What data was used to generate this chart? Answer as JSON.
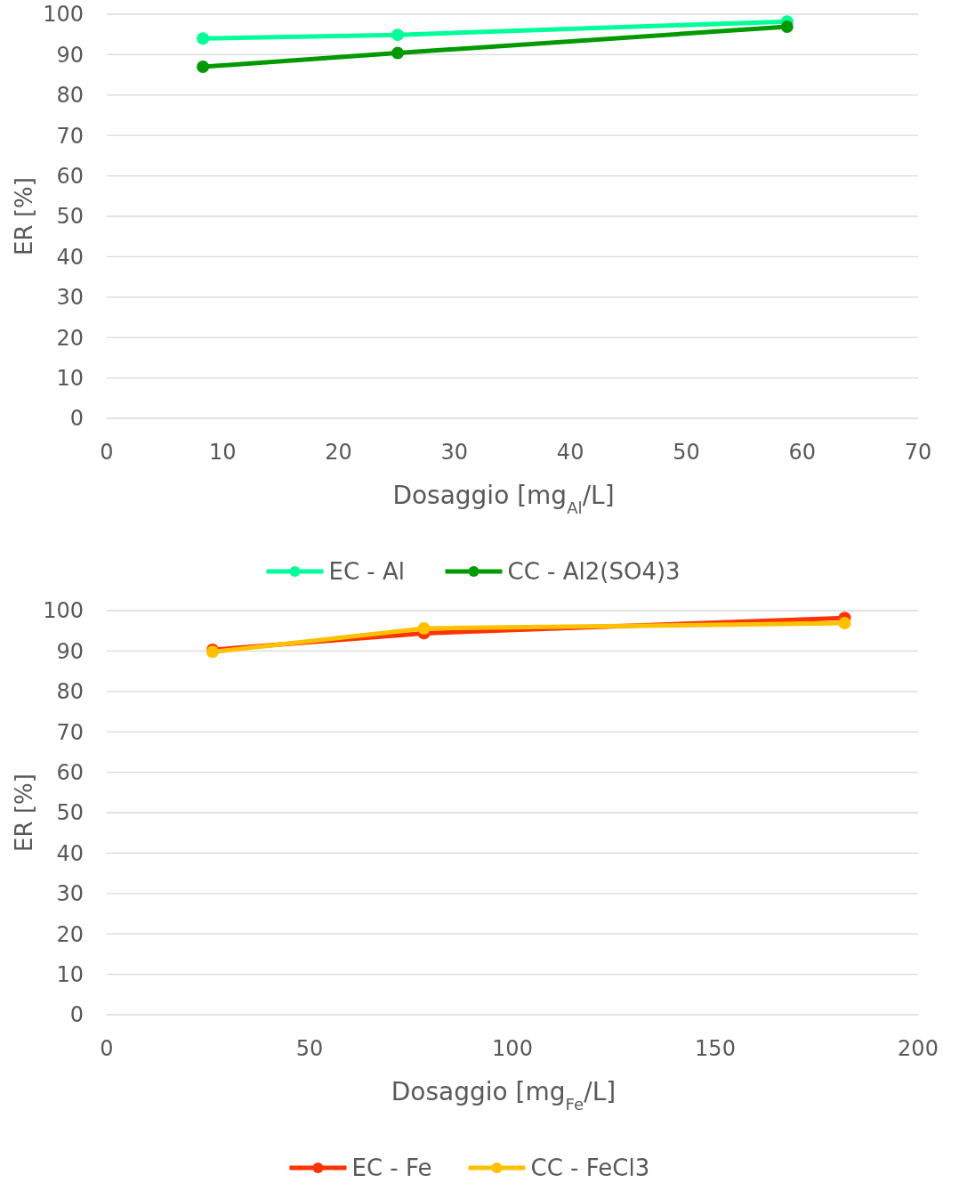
{
  "chart_data": [
    {
      "type": "line",
      "xlabel": "Dosaggio [mg$_{Al}$/L]",
      "ylabel": "ER [%]",
      "xlim": [
        0,
        70
      ],
      "xticks": [
        0,
        10,
        20,
        30,
        40,
        50,
        60,
        70
      ],
      "ylim": [
        0,
        100
      ],
      "yticks": [
        0,
        10,
        20,
        30,
        40,
        50,
        60,
        70,
        80,
        90,
        100
      ],
      "grid": "y",
      "legend": "bottom",
      "marker": "circle",
      "series": [
        {
          "name": "EC - Al",
          "color": "#00ff99",
          "x": [
            8.3,
            25.1,
            58.7
          ],
          "values": [
            94,
            94.9,
            98.2
          ]
        },
        {
          "name": "CC - Al2(SO4)3",
          "color": "#009900",
          "x": [
            8.3,
            25.1,
            58.7
          ],
          "values": [
            87,
            90.4,
            96.9
          ]
        }
      ]
    },
    {
      "type": "line",
      "xlabel": "Dosaggio [mg$_{Fe}$/L]",
      "ylabel": "ER [%]",
      "xlim": [
        0,
        200
      ],
      "xticks": [
        0,
        50,
        100,
        150,
        200
      ],
      "ylim": [
        0,
        100
      ],
      "yticks": [
        0,
        10,
        20,
        30,
        40,
        50,
        60,
        70,
        80,
        90,
        100
      ],
      "grid": "y",
      "legend": "bottom",
      "marker": "circle",
      "series": [
        {
          "name": "EC - Fe",
          "color": "#ff3300",
          "x": [
            26.1,
            78.2,
            181.9
          ],
          "values": [
            90.3,
            94.4,
            98.2
          ]
        },
        {
          "name": "CC - FeCl3",
          "color": "#ffc000",
          "x": [
            26.1,
            78.2,
            181.9
          ],
          "values": [
            89.8,
            95.6,
            96.9
          ]
        }
      ]
    }
  ]
}
